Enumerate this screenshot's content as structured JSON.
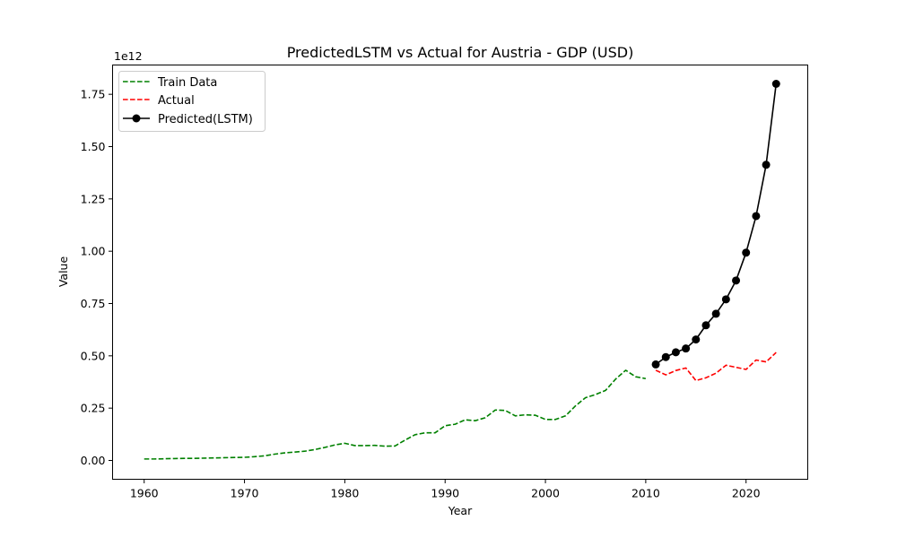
{
  "chart_data": {
    "type": "line",
    "title": "PredictedLSTM vs Actual for Austria - GDP (USD)",
    "xlabel": "Year",
    "ylabel": "Value",
    "y_offset_label": "1e12",
    "xlim": [
      1956.85,
      2026.15
    ],
    "ylim": [
      -0.09,
      1.89
    ],
    "y_scale_factor": 1000000000000,
    "x_ticks": [
      1960,
      1970,
      1980,
      1990,
      2000,
      2010,
      2020
    ],
    "x_tick_labels": [
      "1960",
      "1970",
      "1980",
      "1990",
      "2000",
      "2010",
      "2020"
    ],
    "y_ticks": [
      0.0,
      0.25,
      0.5,
      0.75,
      1.0,
      1.25,
      1.5,
      1.75
    ],
    "y_tick_labels": [
      "0.00",
      "0.25",
      "0.50",
      "0.75",
      "1.00",
      "1.25",
      "1.50",
      "1.75"
    ],
    "grid": false,
    "legend_position": "top-left",
    "series": [
      {
        "name": "Train Data",
        "color": "#008000",
        "style": "dashed",
        "x": [
          1960,
          1961,
          1962,
          1963,
          1964,
          1965,
          1966,
          1967,
          1968,
          1969,
          1970,
          1971,
          1972,
          1973,
          1974,
          1975,
          1976,
          1977,
          1978,
          1979,
          1980,
          1981,
          1982,
          1983,
          1984,
          1985,
          1986,
          1987,
          1988,
          1989,
          1990,
          1991,
          1992,
          1993,
          1994,
          1995,
          1996,
          1997,
          1998,
          1999,
          2000,
          2001,
          2002,
          2003,
          2004,
          2005,
          2006,
          2007,
          2008,
          2009,
          2010
        ],
        "values": [
          0.007,
          0.007,
          0.008,
          0.009,
          0.01,
          0.01,
          0.011,
          0.012,
          0.013,
          0.014,
          0.015,
          0.018,
          0.022,
          0.03,
          0.036,
          0.04,
          0.044,
          0.052,
          0.062,
          0.074,
          0.082,
          0.071,
          0.071,
          0.072,
          0.068,
          0.069,
          0.097,
          0.123,
          0.132,
          0.132,
          0.166,
          0.173,
          0.194,
          0.19,
          0.204,
          0.241,
          0.239,
          0.213,
          0.218,
          0.216,
          0.196,
          0.196,
          0.213,
          0.261,
          0.3,
          0.315,
          0.335,
          0.389,
          0.431,
          0.4,
          0.391
        ]
      },
      {
        "name": "Actual",
        "color": "#ff0000",
        "style": "dashed",
        "x": [
          2011,
          2012,
          2013,
          2014,
          2015,
          2016,
          2017,
          2018,
          2019,
          2020,
          2021,
          2022,
          2023
        ],
        "values": [
          0.431,
          0.409,
          0.43,
          0.442,
          0.382,
          0.395,
          0.417,
          0.455,
          0.445,
          0.435,
          0.48,
          0.471,
          0.516
        ]
      },
      {
        "name": "Predicted(LSTM)",
        "color": "#000000",
        "style": "solid-marker",
        "x": [
          2011,
          2012,
          2013,
          2014,
          2015,
          2016,
          2017,
          2018,
          2019,
          2020,
          2021,
          2022,
          2023
        ],
        "values": [
          0.459,
          0.494,
          0.517,
          0.535,
          0.578,
          0.646,
          0.701,
          0.77,
          0.86,
          0.993,
          1.168,
          1.413,
          1.8
        ]
      }
    ]
  }
}
